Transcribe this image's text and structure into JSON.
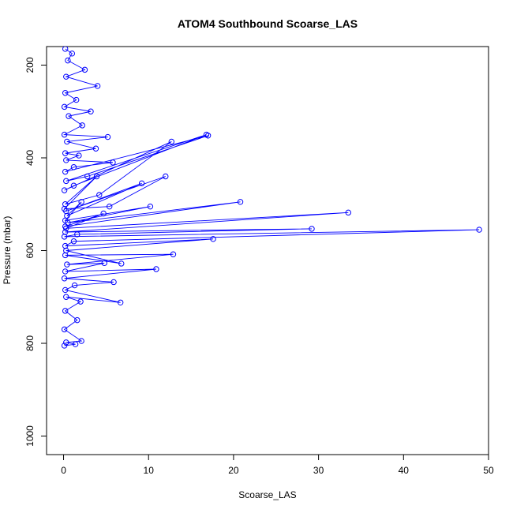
{
  "chart_data": {
    "type": "line",
    "title": "ATOM4 Southbound Scoarse_LAS",
    "xlabel": "Scoarse_LAS",
    "ylabel": "Pressure (mbar)",
    "xlim": [
      -2,
      50
    ],
    "ylim": [
      1040,
      160
    ],
    "y_reversed": true,
    "grid": false,
    "x_ticks": [
      0,
      10,
      20,
      30,
      40,
      50
    ],
    "y_ticks": [
      200,
      400,
      600,
      800,
      1000
    ],
    "series_color": "#0000ff",
    "marker": "open-circle",
    "series": [
      {
        "name": "",
        "x": [
          0.2,
          1.0,
          0.5,
          2.5,
          0.3,
          4.0,
          0.2,
          1.5,
          0.1,
          3.2,
          0.6,
          2.2,
          0.1,
          5.2,
          0.4,
          3.8,
          0.2,
          1.8,
          0.3,
          5.8,
          1.2,
          0.2,
          17.0,
          2.8,
          0.3,
          16.8,
          1.2,
          0.1,
          12.7,
          4.2,
          0.2,
          3.9,
          0.1,
          5.4,
          12.0,
          0.3,
          9.2,
          0.4,
          2.1,
          0.2,
          10.2,
          0.5,
          20.8,
          0.2,
          4.7,
          0.3,
          33.5,
          0.2,
          29.2,
          1.6,
          0.1,
          48.9,
          1.2,
          0.2,
          17.6,
          0.3,
          6.8,
          0.2,
          12.9,
          0.4,
          4.8,
          0.2,
          10.9,
          0.1,
          5.9,
          1.3,
          0.2,
          6.7,
          0.3,
          2.0,
          0.2,
          1.6,
          0.1,
          2.1,
          0.3,
          1.4,
          0.1
        ],
        "y": [
          165,
          175,
          190,
          210,
          225,
          245,
          260,
          275,
          290,
          300,
          310,
          330,
          350,
          355,
          365,
          380,
          390,
          395,
          405,
          410,
          420,
          430,
          352,
          440,
          450,
          350,
          460,
          470,
          365,
          480,
          500,
          440,
          510,
          505,
          440,
          515,
          455,
          525,
          495,
          535,
          505,
          540,
          495,
          548,
          520,
          552,
          518,
          560,
          553,
          565,
          570,
          555,
          580,
          590,
          575,
          600,
          628,
          610,
          608,
          630,
          627,
          645,
          640,
          660,
          668,
          675,
          685,
          712,
          700,
          710,
          730,
          750,
          770,
          795,
          798,
          802,
          805
        ]
      }
    ]
  }
}
